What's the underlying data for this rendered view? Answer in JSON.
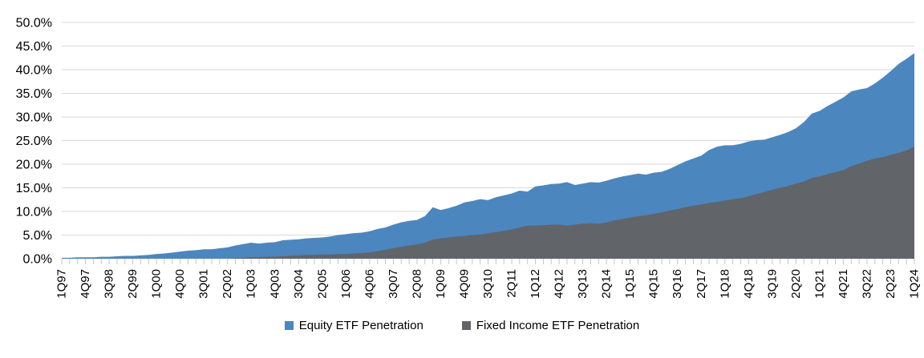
{
  "chart_data": {
    "type": "area",
    "title": "",
    "stacked": false,
    "grid": true,
    "legend_position": "bottom",
    "ylim": [
      0,
      50
    ],
    "y_tick_step": 5,
    "y_tick_labels": [
      "0.0%",
      "5.0%",
      "10.0%",
      "15.0%",
      "20.0%",
      "25.0%",
      "30.0%",
      "35.0%",
      "40.0%",
      "45.0%",
      "50.0%"
    ],
    "x_tick_labels": [
      "1Q97",
      "4Q97",
      "3Q98",
      "2Q99",
      "1Q00",
      "4Q00",
      "3Q01",
      "2Q02",
      "1Q03",
      "4Q03",
      "3Q04",
      "2Q05",
      "1Q06",
      "4Q06",
      "3Q07",
      "2Q08",
      "1Q09",
      "4Q09",
      "3Q10",
      "2Q11",
      "1Q12",
      "4Q12",
      "3Q13",
      "2Q14",
      "1Q15",
      "4Q15",
      "3Q16",
      "2Q17",
      "1Q18",
      "4Q18",
      "3Q19",
      "2Q20",
      "1Q21",
      "4Q21",
      "3Q22",
      "2Q23",
      "1Q24"
    ],
    "x_label_every": 3,
    "categories": [
      "1Q97",
      "2Q97",
      "3Q97",
      "4Q97",
      "1Q98",
      "2Q98",
      "3Q98",
      "4Q98",
      "1Q99",
      "2Q99",
      "3Q99",
      "4Q99",
      "1Q00",
      "2Q00",
      "3Q00",
      "4Q00",
      "1Q01",
      "2Q01",
      "3Q01",
      "4Q01",
      "1Q02",
      "2Q02",
      "3Q02",
      "4Q02",
      "1Q03",
      "2Q03",
      "3Q03",
      "4Q03",
      "1Q04",
      "2Q04",
      "3Q04",
      "4Q04",
      "1Q05",
      "2Q05",
      "3Q05",
      "4Q05",
      "1Q06",
      "2Q06",
      "3Q06",
      "4Q06",
      "1Q07",
      "2Q07",
      "3Q07",
      "4Q07",
      "1Q08",
      "2Q08",
      "3Q08",
      "4Q08",
      "1Q09",
      "2Q09",
      "3Q09",
      "4Q09",
      "1Q10",
      "2Q10",
      "3Q10",
      "4Q10",
      "1Q11",
      "2Q11",
      "3Q11",
      "4Q11",
      "1Q12",
      "2Q12",
      "3Q12",
      "4Q12",
      "1Q13",
      "2Q13",
      "3Q13",
      "4Q13",
      "1Q14",
      "2Q14",
      "3Q14",
      "4Q14",
      "1Q15",
      "2Q15",
      "3Q15",
      "4Q15",
      "1Q16",
      "2Q16",
      "3Q16",
      "4Q16",
      "1Q17",
      "2Q17",
      "3Q17",
      "4Q17",
      "1Q18",
      "2Q18",
      "3Q18",
      "4Q18",
      "1Q19",
      "2Q19",
      "3Q19",
      "4Q19",
      "1Q20",
      "2Q20",
      "3Q20",
      "4Q20",
      "1Q21",
      "2Q21",
      "3Q21",
      "4Q21",
      "1Q22",
      "2Q22",
      "3Q22",
      "4Q22",
      "1Q23",
      "2Q23",
      "3Q23",
      "4Q23",
      "1Q24"
    ],
    "series": [
      {
        "name": "Equity ETF Penetration",
        "color": "#4C86BE",
        "values": [
          0.2,
          0.2,
          0.3,
          0.3,
          0.3,
          0.4,
          0.4,
          0.5,
          0.6,
          0.6,
          0.7,
          0.8,
          1.0,
          1.1,
          1.3,
          1.5,
          1.7,
          1.8,
          2.0,
          2.0,
          2.2,
          2.4,
          2.8,
          3.1,
          3.4,
          3.2,
          3.4,
          3.5,
          3.9,
          4.0,
          4.1,
          4.3,
          4.4,
          4.5,
          4.7,
          5.0,
          5.2,
          5.4,
          5.5,
          5.8,
          6.3,
          6.6,
          7.2,
          7.7,
          8.0,
          8.2,
          9.0,
          10.9,
          10.3,
          10.7,
          11.2,
          11.9,
          12.2,
          12.6,
          12.4,
          13.0,
          13.4,
          13.8,
          14.4,
          14.2,
          15.3,
          15.5,
          15.8,
          15.9,
          16.2,
          15.6,
          15.9,
          16.2,
          16.1,
          16.5,
          17.0,
          17.4,
          17.7,
          18.0,
          17.8,
          18.2,
          18.4,
          19.0,
          19.8,
          20.6,
          21.2,
          21.8,
          23.0,
          23.7,
          24.0,
          24.0,
          24.3,
          24.8,
          25.1,
          25.2,
          25.7,
          26.2,
          26.8,
          27.6,
          28.9,
          30.7,
          31.3,
          32.3,
          33.2,
          34.1,
          35.4,
          35.8,
          36.1,
          37.1,
          38.3,
          39.7,
          41.2,
          42.3,
          43.5
        ]
      },
      {
        "name": "Fixed Income ETF Penetration",
        "color": "#616469",
        "values": [
          0,
          0,
          0,
          0,
          0,
          0,
          0,
          0,
          0,
          0,
          0,
          0,
          0,
          0,
          0,
          0,
          0,
          0,
          0,
          0,
          0,
          0,
          0.1,
          0.2,
          0.3,
          0.3,
          0.4,
          0.4,
          0.5,
          0.6,
          0.7,
          0.8,
          0.8,
          0.9,
          0.9,
          1.0,
          1.0,
          1.1,
          1.2,
          1.3,
          1.6,
          1.9,
          2.2,
          2.5,
          2.8,
          3.0,
          3.4,
          4.0,
          4.3,
          4.5,
          4.7,
          4.8,
          5.0,
          5.1,
          5.4,
          5.6,
          5.9,
          6.2,
          6.6,
          7.0,
          7.0,
          7.1,
          7.2,
          7.2,
          7.0,
          7.2,
          7.4,
          7.5,
          7.4,
          7.7,
          8.1,
          8.4,
          8.7,
          9.0,
          9.2,
          9.5,
          9.8,
          10.2,
          10.5,
          10.9,
          11.2,
          11.5,
          11.8,
          12.0,
          12.3,
          12.6,
          12.8,
          13.2,
          13.7,
          14.1,
          14.6,
          15.0,
          15.4,
          15.9,
          16.3,
          17.1,
          17.4,
          17.9,
          18.3,
          18.7,
          19.6,
          20.1,
          20.7,
          21.2,
          21.5,
          22.0,
          22.4,
          22.9,
          23.7
        ]
      }
    ],
    "colors": {
      "gridline": "#D9D9D9",
      "tick": "#C6C6C6",
      "axis_text": "#000000"
    }
  }
}
